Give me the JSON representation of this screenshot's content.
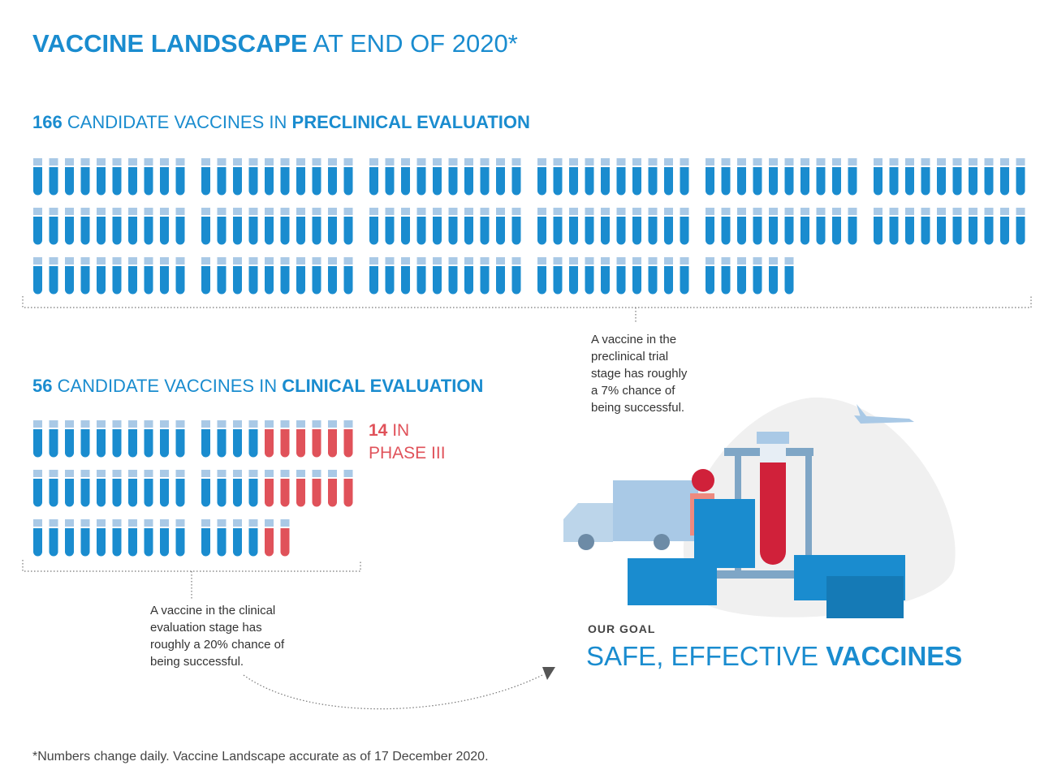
{
  "header": {
    "title_bold": "VACCINE LANDSCAPE",
    "title_rest": "AT END OF 2020*"
  },
  "preclinical": {
    "count": 166,
    "text": "CANDIDATE VACCINES IN",
    "stage": "PRECLINICAL EVALUATION",
    "note": [
      "A vaccine in the",
      "preclinical trial",
      "stage has roughly",
      "a 7% chance of",
      "being successful."
    ]
  },
  "clinical": {
    "count": 56,
    "text": "CANDIDATE VACCINES IN",
    "stage": "CLINICAL EVALUATION",
    "phase3": {
      "count": 14,
      "text": "IN",
      "label": "PHASE III"
    },
    "note": [
      "A vaccine in the clinical",
      "evaluation stage has",
      "roughly a 20% chance of",
      "being successful."
    ]
  },
  "goal": {
    "label": "OUR GOAL",
    "text": "SAFE, EFFECTIVE",
    "bold": "VACCINES"
  },
  "footnote": "*Numbers change daily. Vaccine Landscape accurate as of 17 December 2020."
}
